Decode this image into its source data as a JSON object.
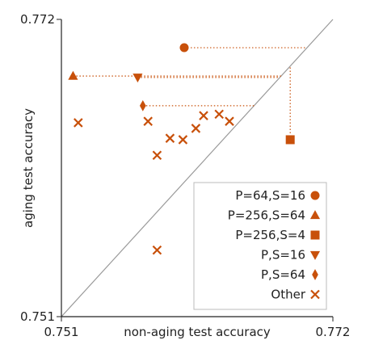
{
  "chart_data": {
    "type": "scatter",
    "title": "",
    "xlabel": "non-aging test accuracy",
    "ylabel": "aging test accuracy",
    "xlim": [
      0.751,
      0.772
    ],
    "ylim": [
      0.751,
      0.772
    ],
    "xtick_labels": [
      "0.751",
      "0.772"
    ],
    "ytick_labels": [
      "0.751",
      "0.772"
    ],
    "diagonal": true,
    "grid": false,
    "legend_position": "bottom-right",
    "marker_color": "#c8500a",
    "diagonal_color": "#999999",
    "series": [
      {
        "name": "P=64,S=16",
        "marker": "circle",
        "x": [
          0.7605
        ],
        "y": [
          0.77
        ],
        "guides": true
      },
      {
        "name": "P=256,S=64",
        "marker": "triangle-up",
        "x": [
          0.7519
        ],
        "y": [
          0.768
        ],
        "guides": true
      },
      {
        "name": "P=256,S=4",
        "marker": "square",
        "x": [
          0.7687
        ],
        "y": [
          0.7635
        ],
        "guides": true
      },
      {
        "name": "P,S=16",
        "marker": "triangle-down",
        "x": [
          0.7569
        ],
        "y": [
          0.7679
        ],
        "guides": true
      },
      {
        "name": "P,S=64",
        "marker": "diamond",
        "x": [
          0.7573
        ],
        "y": [
          0.7659
        ],
        "guides": true
      },
      {
        "name": "Other",
        "marker": "x",
        "x": [
          0.7523,
          0.7577,
          0.7584,
          0.7594,
          0.7604,
          0.7614,
          0.762,
          0.7632,
          0.764,
          0.7584
        ],
        "y": [
          0.7647,
          0.7648,
          0.7624,
          0.7636,
          0.7635,
          0.7643,
          0.7652,
          0.7653,
          0.7648,
          0.7557
        ],
        "guides": false
      }
    ]
  }
}
